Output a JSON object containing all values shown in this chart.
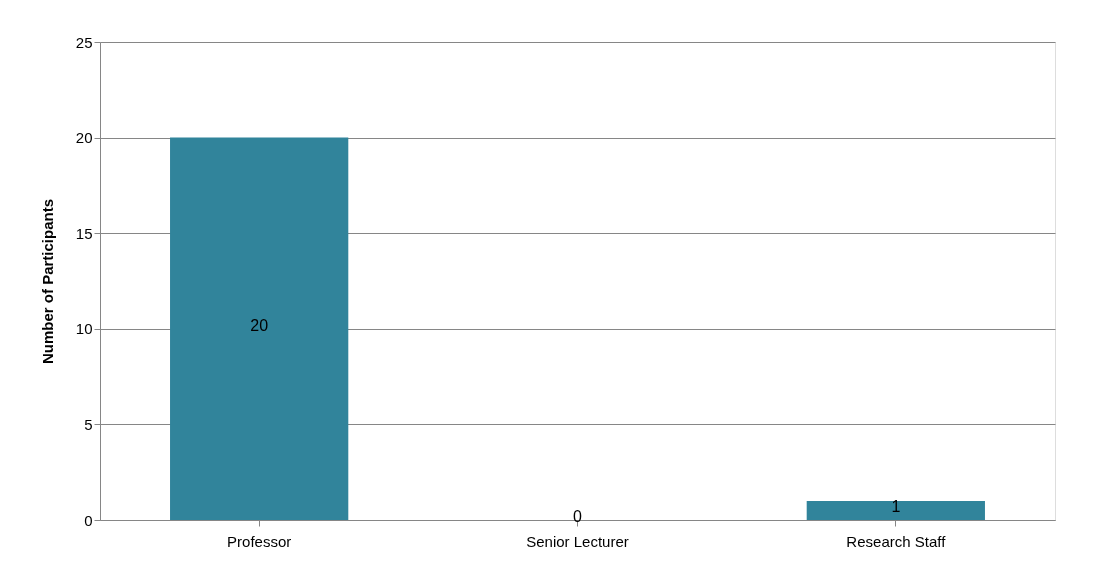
{
  "chart_data": {
    "type": "bar",
    "ylabel": "Number of Participants",
    "categories": [
      "Professor",
      "Senior Lecturer",
      "Research Staff"
    ],
    "values": [
      20,
      0,
      1
    ],
    "color": "#31849b",
    "ylim": [
      0,
      25
    ],
    "yticks": [
      0,
      5,
      10,
      15,
      20,
      25
    ],
    "grid": "y",
    "data_labels": true
  }
}
